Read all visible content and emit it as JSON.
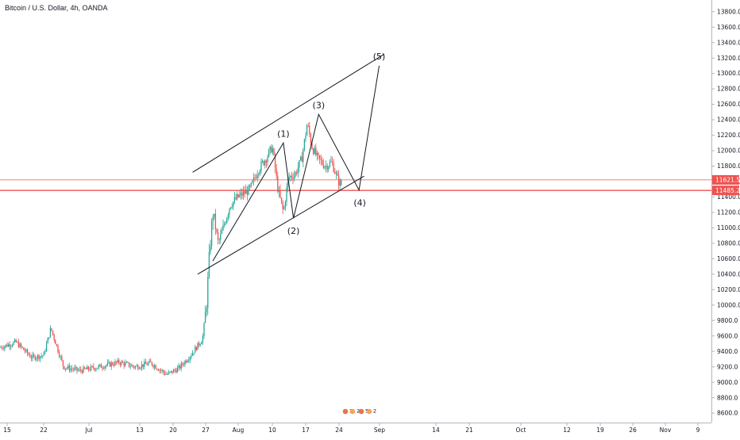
{
  "chart_data": {
    "type": "candlestick",
    "title": "Bitcoin / U.S. Dollar, 4h, OANDA",
    "xlabel": "",
    "ylabel": "",
    "ylim": [
      8550,
      13900
    ],
    "x_ticks": [
      "15",
      "22",
      "Jul",
      "13",
      "20",
      "27",
      "Aug",
      "10",
      "17",
      "24",
      "Sep",
      "14",
      "21",
      "Oct",
      "12",
      "19",
      "26",
      "Nov",
      "9"
    ],
    "y_ticks": [
      8600,
      8800,
      9000,
      9200,
      9400,
      9600,
      9800,
      10000,
      10200,
      10400,
      10600,
      10800,
      11000,
      11200,
      11400,
      11600,
      11800,
      12000,
      12200,
      12400,
      12600,
      12800,
      13000,
      13200,
      13400,
      13600,
      13800
    ],
    "price_lines": [
      {
        "label": "11621.5",
        "value": 11621.5,
        "color": "#ef5350"
      },
      {
        "label": "11485.2",
        "value": 11485.2,
        "color": "#ef5350"
      }
    ],
    "wave_points": [
      {
        "label": "",
        "date": "2020-07-27",
        "value": 10570
      },
      {
        "label": "(1)",
        "date": "2020-08-10",
        "value": 12100
      },
      {
        "label": "(2)",
        "date": "2020-08-12",
        "value": 11125
      },
      {
        "label": "(3)",
        "date": "2020-08-17",
        "value": 12470
      },
      {
        "label": "(4)",
        "date": "2020-08-25",
        "value": 11490
      },
      {
        "label": "(5)",
        "date": "2020-08-29",
        "value": 13100
      }
    ],
    "channel_lines": [
      {
        "from": {
          "date": "2020-07-23",
          "value": 11720
        },
        "to": {
          "date": "2020-08-30",
          "value": 13250
        }
      },
      {
        "from": {
          "date": "2020-07-24",
          "value": 10400
        },
        "to": {
          "date": "2020-08-26",
          "value": 11670
        }
      }
    ],
    "events_badge": [
      "2",
      "24",
      "5",
      "2"
    ],
    "up_color": "#26a69a",
    "down_color": "#ef5350"
  }
}
